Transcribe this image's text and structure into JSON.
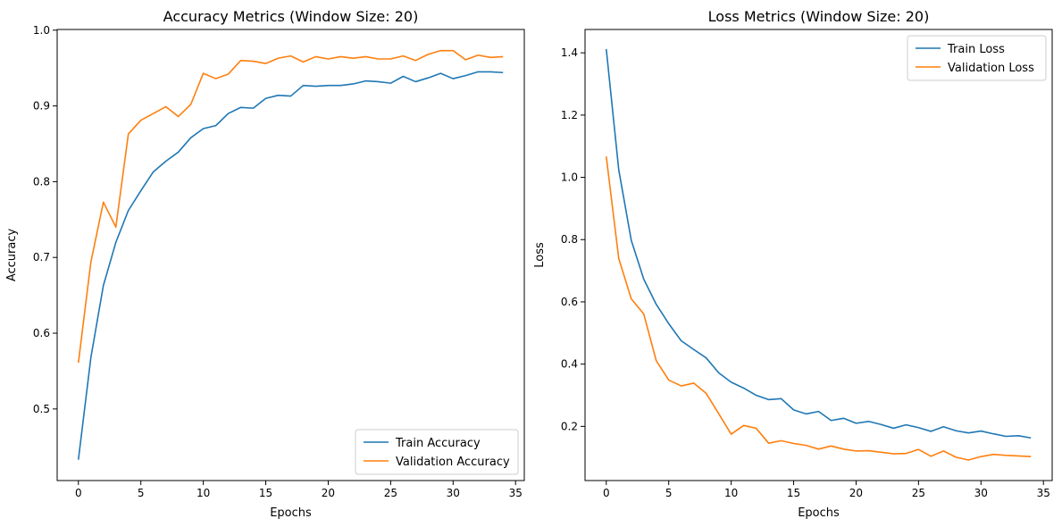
{
  "chart_data": [
    {
      "type": "line",
      "title": "Accuracy Metrics (Window Size: 20)",
      "xlabel": "Epochs",
      "ylabel": "Accuracy",
      "xlim": [
        -1.7,
        35.7
      ],
      "ylim": [
        0.4055,
        1.0009
      ],
      "xticks": [
        0,
        5,
        10,
        15,
        20,
        25,
        30,
        35
      ],
      "yticks": [
        0.5,
        0.6,
        0.7,
        0.8,
        0.9,
        1.0
      ],
      "ytick_labels": [
        "0.5",
        "0.6",
        "0.7",
        "0.8",
        "0.9",
        "1.0"
      ],
      "legend_position": "lower-right",
      "x": [
        0,
        1,
        2,
        3,
        4,
        5,
        6,
        7,
        8,
        9,
        10,
        11,
        12,
        13,
        14,
        15,
        16,
        17,
        18,
        19,
        20,
        21,
        22,
        23,
        24,
        25,
        26,
        27,
        28,
        29,
        30,
        31,
        32,
        33,
        34
      ],
      "series": [
        {
          "name": "Train Accuracy",
          "color": "#1f77b4",
          "values": [
            0.433,
            0.568,
            0.663,
            0.72,
            0.762,
            0.788,
            0.813,
            0.827,
            0.839,
            0.858,
            0.87,
            0.874,
            0.89,
            0.898,
            0.897,
            0.91,
            0.914,
            0.913,
            0.927,
            0.926,
            0.927,
            0.927,
            0.929,
            0.933,
            0.932,
            0.93,
            0.939,
            0.932,
            0.937,
            0.943,
            0.936,
            0.94,
            0.945,
            0.945,
            0.944
          ]
        },
        {
          "name": "Validation Accuracy",
          "color": "#ff7f0e",
          "values": [
            0.561,
            0.694,
            0.773,
            0.74,
            0.863,
            0.881,
            0.89,
            0.899,
            0.886,
            0.902,
            0.943,
            0.936,
            0.942,
            0.96,
            0.959,
            0.956,
            0.963,
            0.966,
            0.958,
            0.965,
            0.962,
            0.965,
            0.963,
            0.965,
            0.962,
            0.962,
            0.966,
            0.96,
            0.968,
            0.973,
            0.973,
            0.961,
            0.967,
            0.964,
            0.965
          ]
        }
      ]
    },
    {
      "type": "line",
      "title": "Loss Metrics (Window Size: 20)",
      "xlabel": "Epochs",
      "ylabel": "Loss",
      "xlim": [
        -1.7,
        35.7
      ],
      "ylim": [
        0.026,
        1.475
      ],
      "xticks": [
        0,
        5,
        10,
        15,
        20,
        25,
        30,
        35
      ],
      "yticks": [
        0.2,
        0.4,
        0.6,
        0.8,
        1.0,
        1.2,
        1.4
      ],
      "ytick_labels": [
        "0.2",
        "0.4",
        "0.6",
        "0.8",
        "1.0",
        "1.2",
        "1.4"
      ],
      "legend_position": "upper-right",
      "x": [
        0,
        1,
        2,
        3,
        4,
        5,
        6,
        7,
        8,
        9,
        10,
        11,
        12,
        13,
        14,
        15,
        16,
        17,
        18,
        19,
        20,
        21,
        22,
        23,
        24,
        25,
        26,
        27,
        28,
        29,
        30,
        31,
        32,
        33,
        34
      ],
      "series": [
        {
          "name": "Train Loss",
          "color": "#1f77b4",
          "values": [
            1.412,
            1.024,
            0.798,
            0.673,
            0.592,
            0.53,
            0.475,
            0.447,
            0.42,
            0.372,
            0.342,
            0.323,
            0.3,
            0.286,
            0.289,
            0.253,
            0.24,
            0.248,
            0.219,
            0.226,
            0.21,
            0.216,
            0.206,
            0.194,
            0.205,
            0.196,
            0.184,
            0.199,
            0.186,
            0.179,
            0.185,
            0.176,
            0.168,
            0.17,
            0.163
          ]
        },
        {
          "name": "Validation Loss",
          "color": "#ff7f0e",
          "values": [
            1.067,
            0.739,
            0.61,
            0.561,
            0.411,
            0.349,
            0.33,
            0.339,
            0.306,
            0.241,
            0.175,
            0.203,
            0.194,
            0.146,
            0.154,
            0.145,
            0.139,
            0.127,
            0.137,
            0.127,
            0.121,
            0.122,
            0.117,
            0.112,
            0.113,
            0.126,
            0.104,
            0.121,
            0.101,
            0.092,
            0.103,
            0.11,
            0.107,
            0.105,
            0.103
          ]
        }
      ]
    }
  ]
}
